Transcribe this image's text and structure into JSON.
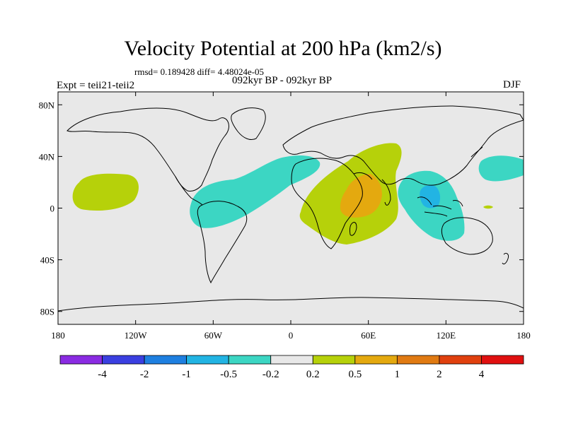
{
  "figure": {
    "title": "Velocity Potential at 200 hPa (km2/s)",
    "stats": "rmsd= 0.189428 diff= 4.48024e-05",
    "experiment": "Expt = teii21-teii2",
    "period": "092kyr BP - 092kyr BP",
    "season": "DJF"
  },
  "map": {
    "projection": "cylindrical-equidistant",
    "ocean_color": "#e8e8e8",
    "coastline_color": "#000000",
    "lat_ticks": [
      {
        "value": 80,
        "label": "80N"
      },
      {
        "value": 40,
        "label": "40N"
      },
      {
        "value": 0,
        "label": "0"
      },
      {
        "value": -40,
        "label": "40S"
      },
      {
        "value": -80,
        "label": "80S"
      }
    ],
    "lon_ticks": [
      {
        "value": -180,
        "label": "180"
      },
      {
        "value": -120,
        "label": "120W"
      },
      {
        "value": -60,
        "label": "60W"
      },
      {
        "value": 0,
        "label": "0"
      },
      {
        "value": 60,
        "label": "60E"
      },
      {
        "value": 120,
        "label": "120E"
      },
      {
        "value": 180,
        "label": "180"
      }
    ],
    "contour_regions": [
      {
        "name": "central-pacific-positive",
        "level": "0.2 to 0.5",
        "color": "#b6d10a"
      },
      {
        "name": "atlantic-americas-negative",
        "level": "-0.5 to -0.2",
        "color": "#3cd6c3"
      },
      {
        "name": "africa-indian-positive",
        "level": "0.2 to 0.5",
        "color": "#b6d10a"
      },
      {
        "name": "arabian-sea-positive-core",
        "level": "0.5 to 1",
        "color": "#e4a90f"
      },
      {
        "name": "maritime-continent-negative",
        "level": "-0.5 to -0.2",
        "color": "#3cd6c3"
      },
      {
        "name": "maritime-continent-negative-core",
        "level": "-1 to -0.5",
        "color": "#22b4e3"
      },
      {
        "name": "north-pacific-negative",
        "level": "-0.5 to -0.2",
        "color": "#3cd6c3"
      },
      {
        "name": "western-pacific-positive-patch",
        "level": "0.2 to 0.5",
        "color": "#b6d10a"
      }
    ]
  },
  "colorbar": {
    "colors": [
      "#8a2be2",
      "#3a3fe0",
      "#1e7fe0",
      "#22b4e3",
      "#3cd6c3",
      "#e8e8e8",
      "#b6d10a",
      "#e4a90f",
      "#e07a12",
      "#e0400e",
      "#e01010"
    ],
    "labels": [
      "-4",
      "-2",
      "-1",
      "-0.5",
      "-0.2",
      "0.2",
      "0.5",
      "1",
      "2",
      "4"
    ]
  }
}
